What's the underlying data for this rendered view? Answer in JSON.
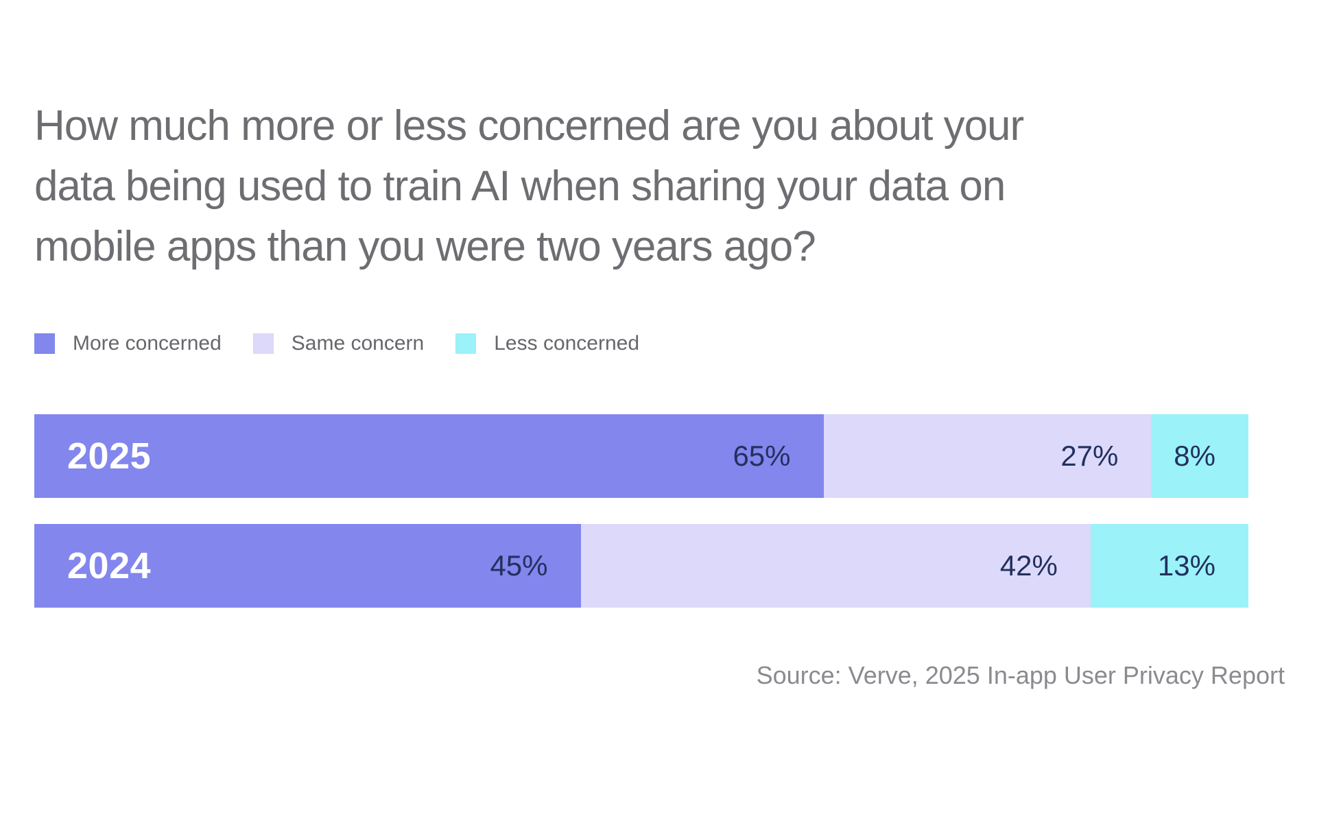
{
  "page": {
    "title_lines": [
      "How much more or less concerned are you about your",
      "data being used to train AI when sharing your data on",
      "mobile apps than you were two years ago?"
    ],
    "source": "Source: Verve, 2025 In-app User Privacy Report"
  },
  "chart_data": {
    "type": "bar",
    "orientation": "horizontal",
    "stacked": true,
    "title": "How much more or less concerned are you about your data being used to train AI when sharing your data on mobile apps than you were two years ago?",
    "categories": [
      "2025",
      "2024"
    ],
    "series": [
      {
        "name": "More concerned",
        "color": "#8286ed",
        "values": [
          65,
          45
        ]
      },
      {
        "name": "Same concern",
        "color": "#dcd9fa",
        "values": [
          27,
          42
        ]
      },
      {
        "name": "Less concerned",
        "color": "#9bf2f9",
        "values": [
          8,
          13
        ]
      }
    ],
    "value_suffix": "%",
    "xlim": [
      0,
      100
    ],
    "grid": false,
    "legend_position": "top-left",
    "source": "Source: Verve, 2025 In-app User Privacy Report"
  },
  "colors": {
    "title_text": "#6d6d72",
    "legend_text": "#66666b",
    "value_text": "#23305e",
    "category_text": "#ffffff",
    "source_text": "#8a8a8f",
    "background": "#ffffff"
  }
}
